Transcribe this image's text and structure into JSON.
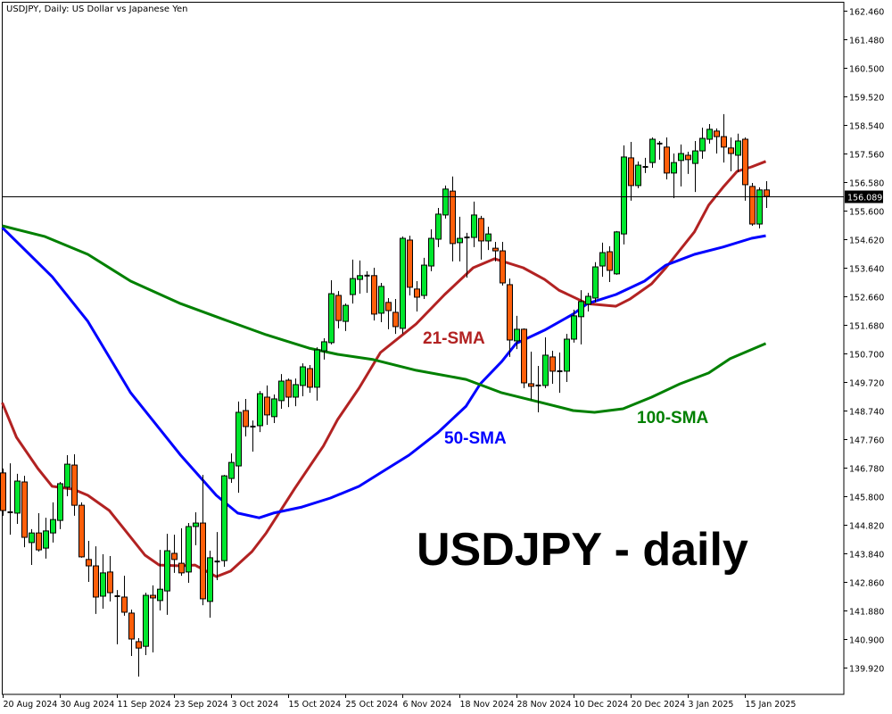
{
  "chart_data": {
    "type": "candlestick",
    "title": "USDJPY, Daily:  US Dollar vs Japanese Yen",
    "watermark_label": "USDJPY - daily",
    "ylim": [
      139.92,
      162.46
    ],
    "y_ticks": [
      "162.460",
      "161.480",
      "160.500",
      "159.520",
      "158.540",
      "157.560",
      "156.580",
      "155.600",
      "154.620",
      "153.640",
      "152.660",
      "151.680",
      "150.700",
      "149.720",
      "148.740",
      "147.760",
      "146.780",
      "145.800",
      "144.820",
      "143.840",
      "142.860",
      "141.880",
      "140.900",
      "139.920"
    ],
    "current_price": 156.089,
    "current_price_label": "156.089",
    "x_ticks": [
      {
        "index": 0,
        "label": "20 Aug 2024"
      },
      {
        "index": 8,
        "label": "30 Aug 2024"
      },
      {
        "index": 16,
        "label": "11 Sep 2024"
      },
      {
        "index": 24,
        "label": "23 Sep 2024"
      },
      {
        "index": 32,
        "label": "3 Oct 2024"
      },
      {
        "index": 40,
        "label": "15 Oct 2024"
      },
      {
        "index": 48,
        "label": "25 Oct 2024"
      },
      {
        "index": 56,
        "label": "6 Nov 2024"
      },
      {
        "index": 64,
        "label": "18 Nov 2024"
      },
      {
        "index": 72,
        "label": "28 Nov 2024"
      },
      {
        "index": 80,
        "label": "10 Dec 2024"
      },
      {
        "index": 88,
        "label": "20 Dec 2024"
      },
      {
        "index": 96,
        "label": "3 Jan 2025"
      },
      {
        "index": 104,
        "label": "15 Jan 2025"
      }
    ],
    "candle_fields": [
      "open",
      "high",
      "low",
      "close"
    ],
    "candles": [
      [
        146.6,
        146.75,
        145.13,
        145.31
      ],
      [
        145.25,
        146.93,
        144.48,
        145.25
      ],
      [
        145.22,
        146.57,
        144.85,
        146.32
      ],
      [
        146.29,
        146.5,
        144.05,
        144.39
      ],
      [
        144.21,
        144.67,
        143.44,
        144.54
      ],
      [
        144.54,
        145.22,
        143.9,
        143.96
      ],
      [
        144.02,
        145.06,
        143.66,
        144.61
      ],
      [
        144.54,
        145.59,
        144.21,
        145.0
      ],
      [
        144.97,
        146.29,
        144.67,
        146.23
      ],
      [
        146.11,
        147.21,
        145.8,
        146.9
      ],
      [
        146.87,
        147.24,
        145.13,
        145.49
      ],
      [
        145.49,
        145.59,
        143.69,
        143.72
      ],
      [
        143.63,
        144.27,
        142.86,
        143.41
      ],
      [
        143.41,
        144.08,
        141.76,
        142.34
      ],
      [
        142.37,
        143.81,
        141.94,
        143.17
      ],
      [
        143.2,
        143.75,
        142.19,
        142.49
      ],
      [
        142.37,
        142.58,
        140.72,
        142.37
      ],
      [
        142.34,
        143.07,
        141.7,
        141.82
      ],
      [
        141.79,
        141.91,
        140.32,
        140.9
      ],
      [
        140.81,
        140.93,
        139.61,
        140.59
      ],
      [
        140.65,
        142.49,
        140.35,
        142.4
      ],
      [
        142.4,
        142.74,
        140.44,
        142.31
      ],
      [
        142.22,
        143.96,
        141.88,
        142.61
      ],
      [
        142.55,
        144.51,
        141.73,
        143.93
      ],
      [
        143.84,
        144.48,
        143.17,
        143.63
      ],
      [
        143.5,
        144.7,
        143.07,
        143.17
      ],
      [
        143.2,
        144.88,
        142.83,
        144.76
      ],
      [
        144.76,
        145.25,
        144.12,
        144.88
      ],
      [
        144.88,
        146.53,
        142.06,
        142.28
      ],
      [
        142.19,
        143.93,
        141.63,
        143.69
      ],
      [
        143.56,
        144.57,
        142.92,
        143.56
      ],
      [
        143.59,
        146.53,
        143.38,
        146.5
      ],
      [
        146.41,
        147.27,
        146.26,
        146.96
      ],
      [
        146.84,
        149.05,
        145.92,
        148.68
      ],
      [
        148.74,
        149.14,
        147.85,
        148.19
      ],
      [
        148.19,
        148.4,
        147.33,
        148.19
      ],
      [
        148.22,
        149.41,
        148.0,
        149.32
      ],
      [
        149.2,
        149.6,
        148.25,
        148.59
      ],
      [
        148.53,
        149.29,
        148.31,
        149.14
      ],
      [
        149.08,
        149.99,
        148.8,
        149.75
      ],
      [
        149.78,
        149.84,
        148.86,
        149.2
      ],
      [
        149.2,
        149.84,
        148.89,
        149.63
      ],
      [
        149.6,
        150.36,
        149.23,
        150.24
      ],
      [
        150.18,
        150.3,
        149.35,
        149.54
      ],
      [
        149.54,
        150.91,
        149.08,
        150.82
      ],
      [
        150.79,
        151.22,
        150.49,
        151.1
      ],
      [
        151.07,
        153.21,
        151.01,
        152.75
      ],
      [
        152.69,
        152.84,
        151.56,
        151.83
      ],
      [
        151.8,
        152.41,
        151.47,
        152.35
      ],
      [
        152.72,
        153.92,
        152.41,
        153.27
      ],
      [
        153.24,
        153.89,
        152.75,
        153.37
      ],
      [
        153.37,
        153.52,
        152.78,
        153.37
      ],
      [
        153.37,
        153.64,
        151.83,
        152.05
      ],
      [
        152.08,
        153.12,
        151.77,
        153.0
      ],
      [
        152.45,
        152.6,
        151.53,
        152.17
      ],
      [
        152.11,
        152.57,
        151.37,
        151.62
      ],
      [
        151.56,
        154.71,
        151.37,
        154.65
      ],
      [
        154.59,
        154.74,
        152.69,
        152.97
      ],
      [
        152.91,
        153.18,
        152.14,
        152.63
      ],
      [
        152.69,
        153.98,
        152.57,
        153.73
      ],
      [
        153.7,
        154.96,
        153.52,
        154.65
      ],
      [
        154.62,
        155.69,
        154.35,
        155.48
      ],
      [
        155.45,
        156.46,
        155.33,
        156.34
      ],
      [
        156.27,
        156.77,
        153.86,
        154.47
      ],
      [
        154.5,
        155.39,
        153.86,
        154.65
      ],
      [
        154.68,
        154.84,
        153.3,
        154.68
      ],
      [
        154.68,
        155.91,
        154.35,
        155.45
      ],
      [
        155.33,
        155.42,
        153.92,
        154.56
      ],
      [
        154.56,
        155.05,
        154.25,
        154.8
      ],
      [
        154.31,
        154.53,
        153.86,
        154.22
      ],
      [
        154.22,
        154.53,
        153.03,
        153.12
      ],
      [
        153.06,
        153.27,
        150.58,
        151.16
      ],
      [
        151.13,
        151.99,
        150.85,
        151.53
      ],
      [
        151.53,
        151.56,
        149.51,
        149.69
      ],
      [
        149.66,
        150.76,
        149.11,
        149.57
      ],
      [
        149.6,
        150.27,
        148.68,
        149.6
      ],
      [
        149.6,
        151.25,
        149.51,
        150.64
      ],
      [
        150.58,
        150.79,
        149.66,
        150.09
      ],
      [
        150.09,
        150.73,
        149.35,
        150.09
      ],
      [
        150.09,
        151.37,
        149.72,
        151.19
      ],
      [
        151.19,
        152.2,
        151.07,
        151.99
      ],
      [
        151.96,
        152.87,
        151.01,
        152.48
      ],
      [
        152.39,
        152.78,
        152.14,
        152.66
      ],
      [
        152.6,
        153.83,
        152.45,
        153.67
      ],
      [
        153.7,
        154.5,
        153.33,
        154.16
      ],
      [
        154.19,
        154.38,
        153.15,
        153.55
      ],
      [
        153.43,
        154.9,
        153.4,
        154.87
      ],
      [
        154.8,
        157.84,
        154.44,
        157.44
      ],
      [
        157.41,
        157.96,
        155.94,
        156.46
      ],
      [
        156.46,
        157.29,
        156.37,
        157.16
      ],
      [
        157.1,
        157.41,
        156.89,
        157.1
      ],
      [
        157.25,
        158.11,
        157.07,
        158.05
      ],
      [
        157.9,
        157.99,
        157.35,
        157.9
      ],
      [
        157.78,
        158.11,
        156.67,
        156.89
      ],
      [
        156.89,
        157.56,
        156.03,
        157.25
      ],
      [
        157.32,
        157.87,
        156.43,
        157.56
      ],
      [
        157.5,
        157.62,
        156.86,
        157.35
      ],
      [
        157.22,
        157.99,
        156.24,
        157.65
      ],
      [
        157.65,
        158.45,
        157.38,
        158.08
      ],
      [
        158.05,
        158.57,
        157.9,
        158.39
      ],
      [
        158.33,
        158.42,
        157.56,
        158.14
      ],
      [
        158.14,
        158.91,
        157.25,
        157.78
      ],
      [
        157.75,
        158.11,
        156.95,
        157.56
      ],
      [
        157.5,
        158.24,
        156.92,
        157.99
      ],
      [
        158.05,
        158.11,
        155.94,
        156.49
      ],
      [
        156.43,
        156.55,
        155.08,
        155.14
      ],
      [
        155.14,
        156.4,
        154.99,
        156.31
      ],
      [
        156.31,
        156.61,
        155.69,
        156.09
      ]
    ],
    "moving_averages": [
      {
        "name": "21-SMA",
        "color": "#b22222",
        "points": [
          [
            0,
            149.01
          ],
          [
            2,
            147.82
          ],
          [
            5,
            146.75
          ],
          [
            7,
            146.14
          ],
          [
            10,
            146.04
          ],
          [
            12,
            145.83
          ],
          [
            15,
            145.31
          ],
          [
            17,
            144.7
          ],
          [
            20,
            143.78
          ],
          [
            22,
            143.44
          ],
          [
            25,
            143.41
          ],
          [
            27,
            143.44
          ],
          [
            30,
            143.04
          ],
          [
            32,
            143.23
          ],
          [
            35,
            143.9
          ],
          [
            37,
            144.54
          ],
          [
            41,
            146.07
          ],
          [
            45,
            147.52
          ],
          [
            47,
            148.43
          ],
          [
            50,
            149.51
          ],
          [
            53,
            150.73
          ],
          [
            58,
            151.71
          ],
          [
            62,
            152.72
          ],
          [
            66,
            153.64
          ],
          [
            69,
            153.95
          ],
          [
            73,
            153.64
          ],
          [
            76,
            153.24
          ],
          [
            78,
            152.87
          ],
          [
            82,
            152.41
          ],
          [
            86,
            152.32
          ],
          [
            88,
            152.57
          ],
          [
            91,
            153.09
          ],
          [
            93,
            153.64
          ],
          [
            97,
            154.87
          ],
          [
            99,
            155.79
          ],
          [
            101,
            156.4
          ],
          [
            103,
            156.95
          ],
          [
            105,
            157.1
          ],
          [
            107,
            157.29
          ]
        ]
      },
      {
        "name": "50-SMA",
        "color": "#0000ff",
        "points": [
          [
            0,
            155.02
          ],
          [
            7,
            153.33
          ],
          [
            12,
            151.8
          ],
          [
            18,
            149.35
          ],
          [
            25,
            147.21
          ],
          [
            30,
            145.83
          ],
          [
            33,
            145.22
          ],
          [
            36,
            145.06
          ],
          [
            38,
            145.22
          ],
          [
            42,
            145.43
          ],
          [
            46,
            145.74
          ],
          [
            50,
            146.14
          ],
          [
            53,
            146.6
          ],
          [
            57,
            147.21
          ],
          [
            61,
            147.97
          ],
          [
            65,
            148.89
          ],
          [
            67,
            149.66
          ],
          [
            70,
            150.42
          ],
          [
            72,
            151.04
          ],
          [
            76,
            151.5
          ],
          [
            80,
            152.05
          ],
          [
            82,
            152.41
          ],
          [
            86,
            152.72
          ],
          [
            90,
            153.18
          ],
          [
            93,
            153.73
          ],
          [
            97,
            154.1
          ],
          [
            101,
            154.35
          ],
          [
            105,
            154.65
          ],
          [
            107,
            154.74
          ]
        ]
      },
      {
        "name": "100-SMA",
        "color": "#008000",
        "points": [
          [
            0,
            155.08
          ],
          [
            6,
            154.71
          ],
          [
            12,
            154.1
          ],
          [
            18,
            153.18
          ],
          [
            25,
            152.41
          ],
          [
            31,
            151.87
          ],
          [
            37,
            151.34
          ],
          [
            43,
            150.88
          ],
          [
            47,
            150.67
          ],
          [
            52,
            150.49
          ],
          [
            58,
            150.12
          ],
          [
            65,
            149.81
          ],
          [
            70,
            149.35
          ],
          [
            75,
            149.05
          ],
          [
            80,
            148.74
          ],
          [
            83,
            148.68
          ],
          [
            87,
            148.8
          ],
          [
            91,
            149.2
          ],
          [
            95,
            149.66
          ],
          [
            99,
            150.03
          ],
          [
            102,
            150.52
          ],
          [
            107,
            151.04
          ]
        ]
      }
    ],
    "colors": {
      "bull": "#00e62e",
      "bear": "#ff5f0a",
      "outline": "#000000",
      "current_price_line": "#000000"
    }
  }
}
